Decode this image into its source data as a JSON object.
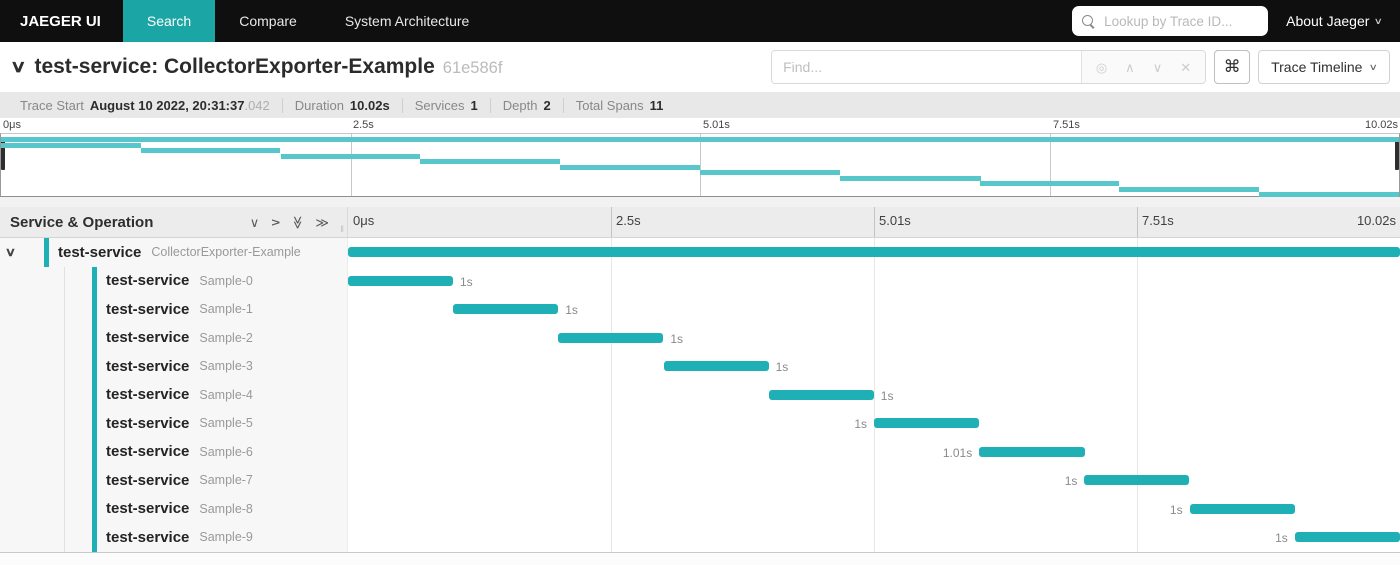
{
  "colors": {
    "nav_active_teal": "#1BA5A5",
    "span_bar_teal": "#1FB0B6",
    "minimap_bar_teal": "#58C7CB"
  },
  "nav": {
    "brand": "JAEGER UI",
    "tabs": [
      {
        "label": "Search",
        "active": true
      },
      {
        "label": "Compare",
        "active": false
      },
      {
        "label": "System Architecture",
        "active": false
      }
    ],
    "lookup_placeholder": "Lookup by Trace ID...",
    "about_label": "About Jaeger"
  },
  "trace_header": {
    "title": "test-service: CollectorExporter-Example",
    "trace_id": "61e586f",
    "find_placeholder": "Find...",
    "shortcut_key": "⌘",
    "view_selector": "Trace Timeline"
  },
  "summary": {
    "items": [
      {
        "label": "Trace Start",
        "value": "August 10 2022, 20:31:37",
        "suffix": ".042"
      },
      {
        "label": "Duration",
        "value": "10.02s",
        "suffix": ""
      },
      {
        "label": "Services",
        "value": "1",
        "suffix": ""
      },
      {
        "label": "Depth",
        "value": "2",
        "suffix": ""
      },
      {
        "label": "Total Spans",
        "value": "11",
        "suffix": ""
      }
    ]
  },
  "timeline": {
    "ticks": [
      "0μs",
      "2.5s",
      "5.01s",
      "7.51s",
      "10.02s"
    ],
    "header_left_title": "Service & Operation"
  },
  "icons": {
    "chevron_down": "∨",
    "double_chevron": "≫",
    "target": "◎",
    "caret_up": "∧",
    "caret_down": "∨",
    "close": "✕"
  },
  "spans": {
    "total_duration_s": 10.02,
    "rows": [
      {
        "service": "test-service",
        "operation": "CollectorExporter-Example",
        "depth": 0,
        "start_s": 0,
        "duration_s": 10.02,
        "label": "",
        "label_side": "none"
      },
      {
        "service": "test-service",
        "operation": "Sample-0",
        "depth": 1,
        "start_s": 0,
        "duration_s": 1.0,
        "label": "1s",
        "label_side": "right"
      },
      {
        "service": "test-service",
        "operation": "Sample-1",
        "depth": 1,
        "start_s": 1.002,
        "duration_s": 1.0,
        "label": "1s",
        "label_side": "right"
      },
      {
        "service": "test-service",
        "operation": "Sample-2",
        "depth": 1,
        "start_s": 2.004,
        "duration_s": 1.0,
        "label": "1s",
        "label_side": "right"
      },
      {
        "service": "test-service",
        "operation": "Sample-3",
        "depth": 1,
        "start_s": 3.006,
        "duration_s": 1.0,
        "label": "1s",
        "label_side": "right"
      },
      {
        "service": "test-service",
        "operation": "Sample-4",
        "depth": 1,
        "start_s": 4.008,
        "duration_s": 1.0,
        "label": "1s",
        "label_side": "right"
      },
      {
        "service": "test-service",
        "operation": "Sample-5",
        "depth": 1,
        "start_s": 5.01,
        "duration_s": 1.0,
        "label": "1s",
        "label_side": "left"
      },
      {
        "service": "test-service",
        "operation": "Sample-6",
        "depth": 1,
        "start_s": 6.012,
        "duration_s": 1.01,
        "label": "1.01s",
        "label_side": "left"
      },
      {
        "service": "test-service",
        "operation": "Sample-7",
        "depth": 1,
        "start_s": 7.014,
        "duration_s": 1.0,
        "label": "1s",
        "label_side": "left"
      },
      {
        "service": "test-service",
        "operation": "Sample-8",
        "depth": 1,
        "start_s": 8.016,
        "duration_s": 1.0,
        "label": "1s",
        "label_side": "left"
      },
      {
        "service": "test-service",
        "operation": "Sample-9",
        "depth": 1,
        "start_s": 9.018,
        "duration_s": 1.0,
        "label": "1s",
        "label_side": "left"
      }
    ]
  }
}
